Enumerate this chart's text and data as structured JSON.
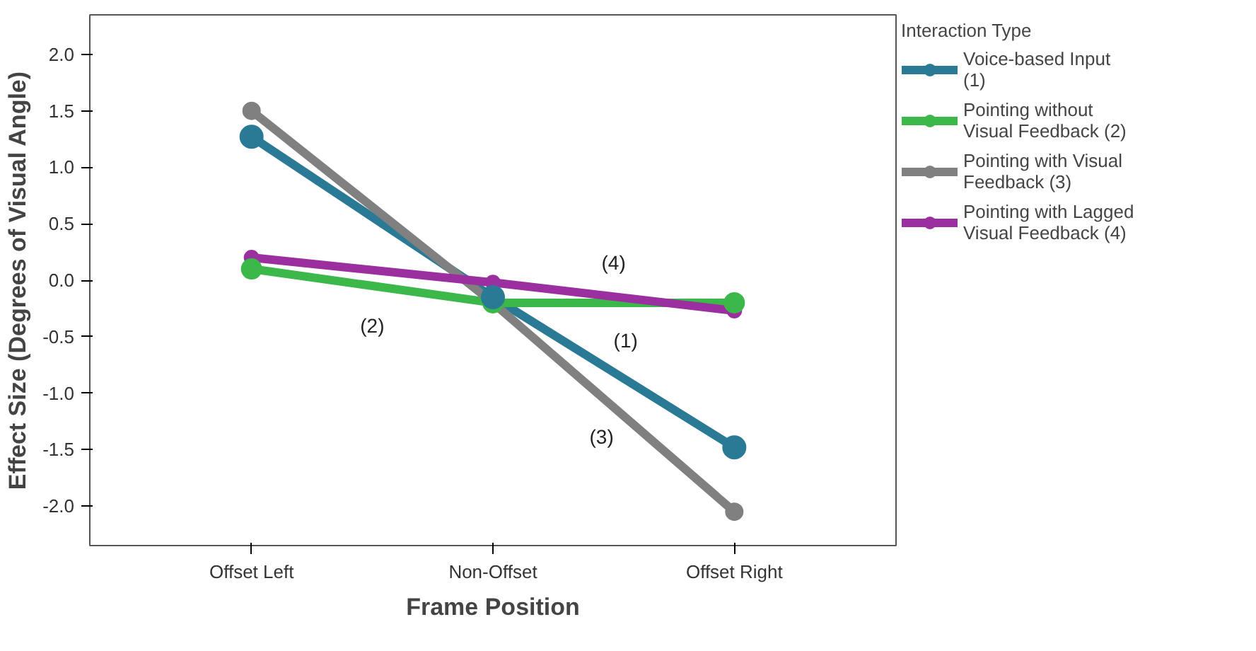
{
  "chart_data": {
    "type": "line",
    "xlabel": "Frame Position",
    "ylabel": "Effect Size (Degrees of Visual Angle)",
    "legend_title": "Interaction Type",
    "categories": [
      "Offset Left",
      "Non-Offset",
      "Offset Right"
    ],
    "series": [
      {
        "name": "Voice-based Input (1)",
        "color": "#2a7a95",
        "values": [
          1.27,
          -0.15,
          -1.48
        ]
      },
      {
        "name": "Pointing without Visual Feedback (2)",
        "color": "#3cb84a",
        "values": [
          0.1,
          -0.2,
          -0.2
        ]
      },
      {
        "name": "Pointing with Visual Feedback (3)",
        "color": "#808080",
        "values": [
          1.5,
          -0.2,
          -2.05
        ]
      },
      {
        "name": "Pointing with Lagged Visual Feedback (4)",
        "color": "#9b2fa0",
        "values": [
          0.2,
          -0.02,
          -0.27
        ]
      }
    ],
    "annotations": [
      "(1)",
      "(2)",
      "(3)",
      "(4)"
    ],
    "ylim": [
      -2.35,
      2.35
    ],
    "yticks": [
      {
        "value": 2,
        "label": "2.0"
      },
      {
        "value": 1.5,
        "label": "1.5"
      },
      {
        "value": 1,
        "label": "1.0"
      },
      {
        "value": 0.5,
        "label": "0.5"
      },
      {
        "value": 0,
        "label": "0.0"
      },
      {
        "value": -0.5,
        "label": "-0.5"
      },
      {
        "value": -1,
        "label": "-1.0"
      },
      {
        "value": -1.5,
        "label": "-1.5"
      },
      {
        "value": -2,
        "label": "-2.0"
      }
    ],
    "grid": false,
    "legend": "right",
    "marker": "circle",
    "line_style": "solid"
  }
}
